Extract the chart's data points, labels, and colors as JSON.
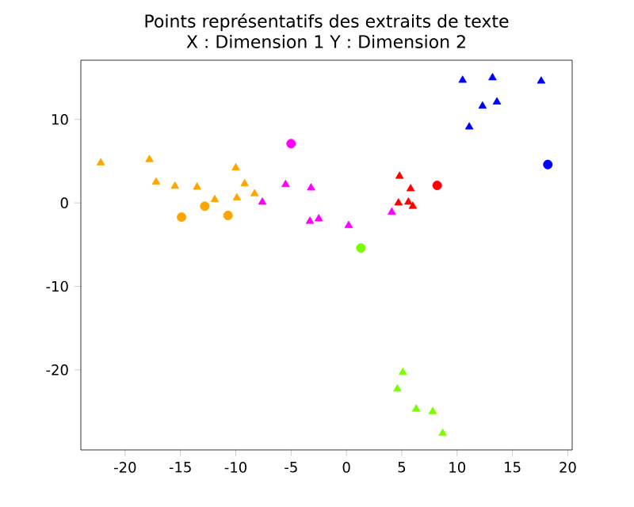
{
  "chart_data": {
    "type": "scatter",
    "title": "Points représentatifs des extraits de texte",
    "subtitle": "X : Dimension 1     Y : Dimension 2",
    "xlim": [
      -24,
      20.4
    ],
    "ylim": [
      -29.6,
      17.1
    ],
    "xticks": [
      -20,
      -15,
      -10,
      -5,
      0,
      5,
      10,
      15,
      20
    ],
    "yticks": [
      -20,
      -10,
      0,
      10
    ],
    "series": [
      {
        "color": "#ffa500",
        "marker": "triangle",
        "x": [
          -22.2,
          -17.8,
          -17.2,
          -15.5,
          -13.5,
          -11.9,
          -10.0,
          -9.2,
          -9.9,
          -8.3
        ],
        "values": [
          4.8,
          5.2,
          2.5,
          2.0,
          1.9,
          0.4,
          4.2,
          2.3,
          0.6,
          1.1
        ]
      },
      {
        "color": "#ffa500",
        "marker": "circle",
        "x": [
          -14.9,
          -12.8,
          -10.7
        ],
        "values": [
          -1.7,
          -0.4,
          -1.5
        ]
      },
      {
        "color": "#ff00ff",
        "marker": "triangle",
        "x": [
          -7.6,
          -5.5,
          -3.2,
          -3.3,
          -2.5,
          0.2,
          4.1
        ],
        "values": [
          0.1,
          2.2,
          1.8,
          -2.2,
          -1.9,
          -2.7,
          -1.1
        ]
      },
      {
        "color": "#ff00ff",
        "marker": "circle",
        "x": [
          -5.0
        ],
        "values": [
          7.1
        ]
      },
      {
        "color": "#ff0000",
        "marker": "triangle",
        "x": [
          4.8,
          5.8,
          4.7,
          5.6,
          6.0
        ],
        "values": [
          3.2,
          1.7,
          0,
          0.1,
          -0.4
        ]
      },
      {
        "color": "#ff0000",
        "marker": "circle",
        "x": [
          8.2
        ],
        "values": [
          2.1
        ]
      },
      {
        "color": "#0000ff",
        "marker": "triangle",
        "x": [
          10.5,
          13.2,
          17.6,
          12.3,
          13.6,
          11.1
        ],
        "values": [
          14.7,
          15.0,
          14.6,
          11.6,
          12.1,
          9.1
        ]
      },
      {
        "color": "#0000ff",
        "marker": "circle",
        "x": [
          18.2
        ],
        "values": [
          4.6
        ]
      },
      {
        "color": "#7cfc00",
        "marker": "circle",
        "x": [
          1.3
        ],
        "values": [
          -5.4
        ]
      },
      {
        "color": "#7cfc00",
        "marker": "triangle",
        "x": [
          5.1,
          4.6,
          6.3,
          7.8,
          8.7
        ],
        "values": [
          -20.3,
          -22.3,
          -24.7,
          -25.0,
          -27.6
        ]
      }
    ]
  }
}
